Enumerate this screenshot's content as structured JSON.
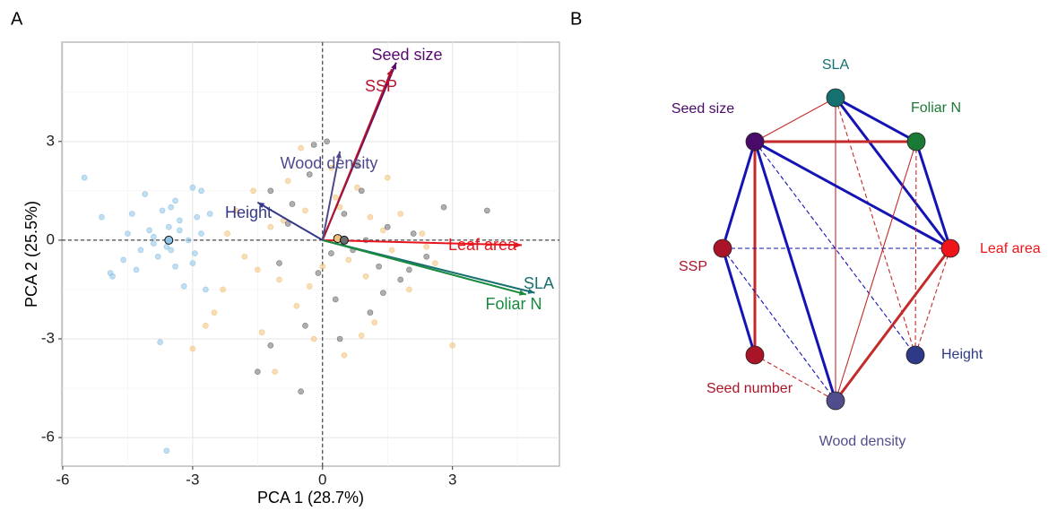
{
  "chart_data": [
    {
      "type": "biplot",
      "label": "A",
      "xlabel": "PCA 1 (28.7%)",
      "ylabel": "PCA 2 (25.5%)",
      "xlim": [
        -6.02,
        5.47
      ],
      "ylim": [
        -6.87,
        6.02
      ],
      "xticks": [
        -6,
        -3,
        0,
        3
      ],
      "yticks": [
        -6,
        -3,
        0,
        3
      ],
      "minor_xticks": [
        -4.5,
        -1.5,
        1.5,
        4.5
      ],
      "minor_yticks": [
        -4.5,
        -1.5,
        1.5,
        4.5
      ],
      "grid": true,
      "reference_lines": true,
      "series": [
        {
          "color": "#8fc2e6",
          "centroid": {
            "x": -3.55,
            "y": 0.0
          },
          "x": [
            -5.5,
            -5.1,
            -4.9,
            -4.85,
            -4.6,
            -4.5,
            -4.4,
            -4.2,
            -4.1,
            -4.0,
            -3.9,
            -3.8,
            -3.7,
            -3.6,
            -3.55,
            -3.5,
            -3.4,
            -3.3,
            -3.2,
            -3.1,
            -3.0,
            -2.95,
            -2.9,
            -2.8,
            -2.7,
            -2.6,
            -3.75,
            -3.6,
            -3.9,
            -3.3,
            -4.3,
            -3.0,
            -3.4,
            -2.8,
            -3.5
          ],
          "y": [
            1.9,
            0.7,
            -1.0,
            -1.1,
            -0.6,
            0.2,
            0.8,
            -0.3,
            1.4,
            0.3,
            0.1,
            -0.5,
            0.9,
            -0.2,
            0.4,
            1.0,
            -0.8,
            0.6,
            -1.4,
            0.0,
            1.6,
            -0.4,
            0.7,
            1.5,
            -1.5,
            0.8,
            -3.1,
            -6.4,
            -0.1,
            0.3,
            -0.9,
            -0.7,
            1.2,
            0.2,
            -0.3
          ]
        },
        {
          "color": "#f3c27a",
          "centroid": {
            "x": 0.35,
            "y": 0.05
          },
          "x": [
            -3.0,
            -2.7,
            -2.5,
            -2.3,
            -2.0,
            -1.8,
            -1.6,
            -1.4,
            -1.2,
            -1.0,
            -0.8,
            -0.6,
            -0.4,
            -0.2,
            0.0,
            0.2,
            0.4,
            0.6,
            0.8,
            1.0,
            1.2,
            1.4,
            1.6,
            1.8,
            2.0,
            2.3,
            2.6,
            3.0,
            -1.5,
            -0.9,
            -0.3,
            0.3,
            0.9,
            1.5,
            -2.2,
            -0.5,
            0.5,
            1.1,
            -1.1,
            2.4
          ],
          "y": [
            -3.3,
            -2.6,
            -2.2,
            -1.5,
            0.9,
            -0.5,
            1.5,
            -2.8,
            0.4,
            -1.2,
            1.8,
            -2.0,
            0.9,
            -3.0,
            -0.8,
            2.2,
            1.0,
            -0.6,
            1.6,
            -1.1,
            -2.5,
            0.3,
            -0.3,
            0.8,
            -1.5,
            0.2,
            -0.7,
            -3.2,
            -0.9,
            0.6,
            -1.4,
            1.3,
            -2.9,
            1.9,
            0.2,
            2.8,
            -3.5,
            0.7,
            -4.0,
            -0.2
          ]
        },
        {
          "color": "#6e6e6e",
          "centroid": {
            "x": 0.5,
            "y": 0.0
          },
          "x": [
            -1.5,
            -1.2,
            -1.0,
            -0.8,
            -0.5,
            -0.3,
            -0.1,
            0.1,
            0.3,
            0.5,
            0.7,
            0.9,
            1.1,
            1.3,
            1.5,
            1.8,
            2.1,
            2.4,
            2.8,
            3.8,
            -1.2,
            -0.4,
            0.2,
            0.8,
            1.4,
            -0.7,
            0.4,
            1.0,
            -0.2,
            2.0
          ],
          "y": [
            -4.0,
            1.5,
            -0.7,
            0.5,
            -4.6,
            2.0,
            -1.0,
            3.0,
            -1.8,
            0.8,
            -0.3,
            1.5,
            -2.2,
            -0.8,
            0.4,
            -1.2,
            0.2,
            -0.5,
            1.0,
            0.9,
            -3.2,
            -2.6,
            -0.4,
            2.3,
            -1.6,
            1.1,
            -3.0,
            0.0,
            2.9,
            -0.9
          ]
        }
      ],
      "loadings": [
        {
          "name": "Seed size",
          "color": "#5a0a6e",
          "x": 1.7,
          "y": 5.4
        },
        {
          "name": "SSP",
          "color": "#b3142c",
          "x": 1.6,
          "y": 5.2
        },
        {
          "name": "Wood density",
          "color": "#4d4a8c",
          "x": 0.4,
          "y": 2.7
        },
        {
          "name": "Height",
          "color": "#35388a",
          "x": -1.5,
          "y": 1.15
        },
        {
          "name": "Leaf area",
          "color": "#e8141c",
          "x": 4.6,
          "y": -0.15
        },
        {
          "name": "SLA",
          "color": "#1a7070",
          "x": 4.9,
          "y": -1.6
        },
        {
          "name": "Foliar N",
          "color": "#178a3c",
          "x": 4.7,
          "y": -1.65
        }
      ]
    },
    {
      "type": "network",
      "label": "B",
      "positive_color": "#1414b4",
      "negative_color": "#c42a2a",
      "nodes": [
        {
          "name": "SLA",
          "color": "#157070"
        },
        {
          "name": "Foliar N",
          "color": "#1a7a35"
        },
        {
          "name": "Leaf area",
          "color": "#ee1419"
        },
        {
          "name": "Height",
          "color": "#2e3a87"
        },
        {
          "name": "Wood density",
          "color": "#514c8c"
        },
        {
          "name": "Seed number",
          "color": "#aa1428"
        },
        {
          "name": "SSP",
          "color": "#aa1428"
        },
        {
          "name": "Seed size",
          "color": "#4a0a6a"
        }
      ],
      "edges": [
        {
          "from": 0,
          "to": 1,
          "sign": "positive",
          "strength": "strong",
          "dashed": false
        },
        {
          "from": 0,
          "to": 2,
          "sign": "positive",
          "strength": "strong",
          "dashed": false
        },
        {
          "from": 0,
          "to": 7,
          "sign": "negative",
          "strength": "weak",
          "dashed": false
        },
        {
          "from": 0,
          "to": 4,
          "sign": "negative",
          "strength": "weak",
          "dashed": false
        },
        {
          "from": 0,
          "to": 3,
          "sign": "negative",
          "strength": "weak",
          "dashed": true
        },
        {
          "from": 7,
          "to": 1,
          "sign": "negative",
          "strength": "strong",
          "dashed": false
        },
        {
          "from": 7,
          "to": 2,
          "sign": "positive",
          "strength": "strong",
          "dashed": false
        },
        {
          "from": 7,
          "to": 6,
          "sign": "positive",
          "strength": "strong",
          "dashed": false
        },
        {
          "from": 7,
          "to": 5,
          "sign": "negative",
          "strength": "strong",
          "dashed": false
        },
        {
          "from": 7,
          "to": 4,
          "sign": "positive",
          "strength": "strong",
          "dashed": false
        },
        {
          "from": 7,
          "to": 3,
          "sign": "positive",
          "strength": "weak",
          "dashed": true
        },
        {
          "from": 1,
          "to": 2,
          "sign": "positive",
          "strength": "strong",
          "dashed": false
        },
        {
          "from": 1,
          "to": 4,
          "sign": "negative",
          "strength": "weak",
          "dashed": false
        },
        {
          "from": 1,
          "to": 3,
          "sign": "negative",
          "strength": "weak",
          "dashed": true
        },
        {
          "from": 2,
          "to": 6,
          "sign": "positive",
          "strength": "weak",
          "dashed": true
        },
        {
          "from": 2,
          "to": 4,
          "sign": "negative",
          "strength": "strong",
          "dashed": false
        },
        {
          "from": 2,
          "to": 3,
          "sign": "negative",
          "strength": "weak",
          "dashed": true
        },
        {
          "from": 6,
          "to": 5,
          "sign": "positive",
          "strength": "strong",
          "dashed": false
        },
        {
          "from": 6,
          "to": 4,
          "sign": "positive",
          "strength": "weak",
          "dashed": true
        },
        {
          "from": 5,
          "to": 4,
          "sign": "negative",
          "strength": "weak",
          "dashed": true
        }
      ]
    }
  ]
}
